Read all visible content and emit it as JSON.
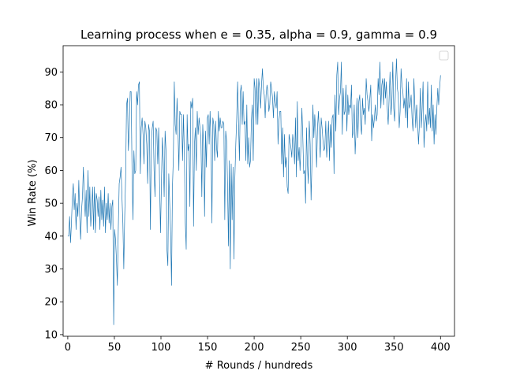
{
  "chart_data": {
    "type": "line",
    "title": "Learning process when e = 0.35, alpha = 0.9, gamma = 0.9",
    "xlabel": "# Rounds / hundreds",
    "ylabel": "Win Rate (%)",
    "xlim": [
      -5,
      415
    ],
    "ylim": [
      9.5,
      98
    ],
    "xticks": [
      0,
      50,
      100,
      150,
      200,
      250,
      300,
      350,
      400
    ],
    "yticks": [
      10,
      20,
      30,
      40,
      50,
      60,
      70,
      80,
      90
    ],
    "grid": false,
    "legend": "top-right",
    "line_color": "#1f77b4",
    "series": [
      {
        "values": [
          40,
          40,
          46,
          38,
          44,
          52,
          56,
          48,
          53,
          42,
          50,
          46,
          57,
          46,
          39,
          48,
          52,
          61,
          52,
          46,
          54,
          41,
          60,
          46,
          55,
          43,
          48,
          55,
          42,
          55,
          41,
          53,
          51,
          46,
          52,
          42,
          54,
          45,
          51,
          43,
          55,
          41,
          50,
          45,
          53,
          44,
          50,
          42,
          49,
          51,
          13,
          42,
          39,
          33,
          25,
          42,
          56,
          58,
          61,
          52,
          44,
          30,
          46,
          58,
          80,
          82,
          66,
          73,
          84,
          84,
          60,
          45,
          66,
          59,
          60,
          84,
          80,
          86,
          87,
          59,
          73,
          76,
          71,
          62,
          75,
          73,
          68,
          56,
          74,
          72,
          42,
          69,
          73,
          75,
          60,
          52,
          73,
          72,
          62,
          73,
          56,
          41,
          56,
          70,
          63,
          52,
          72,
          66,
          36,
          31,
          59,
          50,
          41,
          25,
          55,
          64,
          87,
          74,
          71,
          82,
          73,
          60,
          78,
          77,
          77,
          63,
          77,
          65,
          44,
          36,
          77,
          66,
          68,
          49,
          81,
          79,
          82,
          43,
          68,
          73,
          60,
          78,
          71,
          76,
          73,
          70,
          52,
          74,
          67,
          46,
          72,
          61,
          76,
          77,
          68,
          78,
          68,
          44,
          76,
          74,
          63,
          75,
          67,
          64,
          78,
          72,
          76,
          73,
          73,
          75,
          74,
          45,
          72,
          69,
          56,
          37,
          63,
          30,
          62,
          45,
          61,
          33,
          58,
          68,
          76,
          87,
          74,
          63,
          84,
          86,
          74,
          84,
          74,
          75,
          63,
          80,
          62,
          70,
          61,
          63,
          75,
          80,
          63,
          88,
          85,
          74,
          88,
          74,
          88,
          85,
          79,
          86,
          91,
          85,
          83,
          76,
          83,
          86,
          84,
          78,
          80,
          87,
          85,
          82,
          76,
          84,
          81,
          79,
          84,
          68,
          75,
          78,
          78,
          62,
          73,
          58,
          71,
          61,
          64,
          55,
          53,
          71,
          69,
          67,
          64,
          71,
          68,
          62,
          76,
          58,
          81,
          63,
          67,
          60,
          68,
          79,
          70,
          59,
          60,
          50,
          73,
          62,
          56,
          75,
          68,
          51,
          63,
          80,
          70,
          77,
          72,
          61,
          73,
          78,
          71,
          64,
          76,
          73,
          69,
          66,
          67,
          75,
          64,
          69,
          75,
          63,
          74,
          67,
          76,
          77,
          59,
          83,
          72,
          89,
          93,
          77,
          82,
          84,
          93,
          71,
          85,
          77,
          78,
          86,
          72,
          83,
          77,
          80,
          79,
          86,
          70,
          72,
          80,
          65,
          72,
          82,
          70,
          81,
          83,
          74,
          71,
          82,
          77,
          79,
          74,
          88,
          83,
          81,
          78,
          82,
          86,
          69,
          77,
          73,
          76,
          80,
          75,
          77,
          88,
          83,
          93,
          79,
          86,
          88,
          80,
          88,
          82,
          87,
          79,
          74,
          82,
          90,
          77,
          81,
          93,
          79,
          75,
          86,
          94,
          85,
          83,
          73,
          78,
          91,
          86,
          84,
          79,
          82,
          76,
          88,
          73,
          87,
          79,
          80,
          83,
          76,
          72,
          88,
          80,
          73,
          80,
          75,
          68,
          74,
          85,
          73,
          79,
          87,
          67,
          74,
          77,
          72,
          87,
          74,
          79,
          73,
          86,
          72,
          80,
          68,
          77,
          71,
          79,
          85,
          80,
          85,
          89
        ]
      }
    ]
  }
}
